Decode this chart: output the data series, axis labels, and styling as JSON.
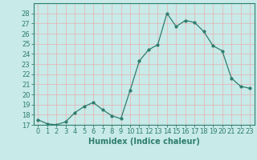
{
  "x": [
    0,
    1,
    2,
    3,
    4,
    5,
    6,
    7,
    8,
    9,
    10,
    11,
    12,
    13,
    14,
    15,
    16,
    17,
    18,
    19,
    20,
    21,
    22,
    23
  ],
  "y": [
    17.5,
    17.1,
    17.0,
    17.3,
    18.2,
    18.8,
    19.2,
    18.5,
    17.9,
    17.6,
    20.4,
    23.3,
    24.4,
    24.9,
    28.0,
    26.7,
    27.3,
    27.1,
    26.2,
    24.8,
    24.3,
    21.6,
    20.8,
    20.6
  ],
  "xlabel": "Humidex (Indice chaleur)",
  "ylim": [
    17,
    29
  ],
  "xlim": [
    -0.5,
    23.5
  ],
  "yticks": [
    17,
    18,
    19,
    20,
    21,
    22,
    23,
    24,
    25,
    26,
    27,
    28
  ],
  "xticks": [
    0,
    1,
    2,
    3,
    4,
    5,
    6,
    7,
    8,
    9,
    10,
    11,
    12,
    13,
    14,
    15,
    16,
    17,
    18,
    19,
    20,
    21,
    22,
    23
  ],
  "xtick_labels": [
    "0",
    "1",
    "2",
    "3",
    "4",
    "5",
    "6",
    "7",
    "8",
    "9",
    "10",
    "11",
    "12",
    "13",
    "14",
    "15",
    "16",
    "17",
    "18",
    "19",
    "20",
    "21",
    "22",
    "23"
  ],
  "line_color": "#2e7d6e",
  "marker_color": "#2e7d6e",
  "bg_color": "#c8eae8",
  "grid_color": "#e8b0b0",
  "border_color": "#2e7d6e",
  "xlabel_fontsize": 7,
  "tick_fontsize": 6
}
